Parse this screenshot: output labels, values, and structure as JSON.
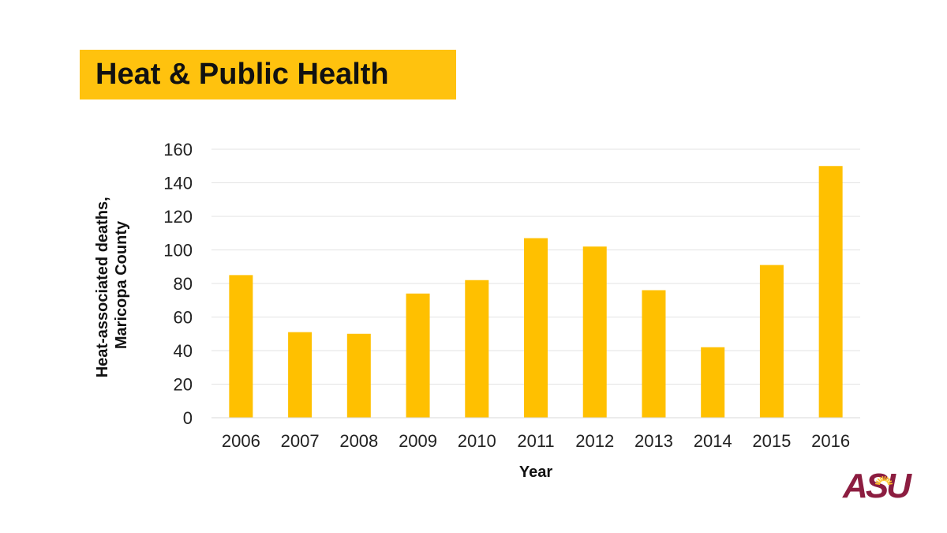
{
  "slide": {
    "title": "Heat & Public Health",
    "title_bg_color": "#FFC20E"
  },
  "logo": {
    "text": "ASU",
    "color": "#8C1D40",
    "accent_color": "#FFC627"
  },
  "chart_data": {
    "type": "bar",
    "categories": [
      "2006",
      "2007",
      "2008",
      "2009",
      "2010",
      "2011",
      "2012",
      "2013",
      "2014",
      "2015",
      "2016"
    ],
    "values": [
      85,
      51,
      50,
      74,
      82,
      107,
      102,
      76,
      42,
      91,
      150
    ],
    "xlabel": "Year",
    "ylabel_lines": [
      "Heat-associated deaths,",
      "Maricopa County"
    ],
    "ylim": [
      0,
      160
    ],
    "yticks": [
      0,
      20,
      40,
      60,
      80,
      100,
      120,
      140,
      160
    ],
    "bar_color": "#FFC000",
    "gridlines": true,
    "legend": "none"
  }
}
